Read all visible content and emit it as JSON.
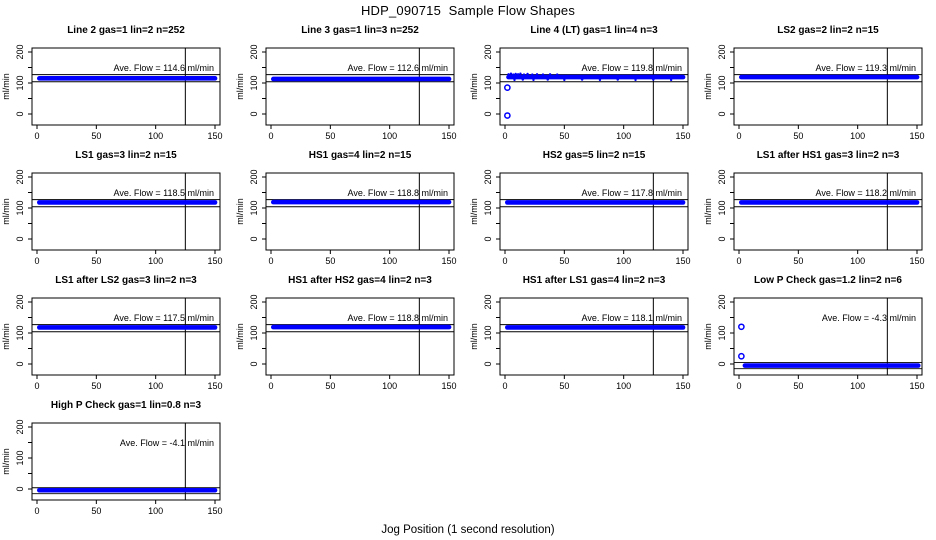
{
  "page": {
    "title": "HDP_090715  Sample Flow Shapes",
    "xlabel": "Jog Position (1 second resolution)"
  },
  "chart_data": {
    "type": "scatter",
    "layout": {
      "rows": 4,
      "cols": 4,
      "n_plots": 13,
      "grid": false,
      "background": "#ffffff"
    },
    "point_color": "#0000ff",
    "axis_color": "#000000",
    "ylabel": "ml/min",
    "xlim": [
      -4,
      154
    ],
    "ylim": [
      -35,
      213
    ],
    "vline_x": 125,
    "x_ticks": [
      {
        "v": 0,
        "label": "0"
      },
      {
        "v": 50,
        "label": "50"
      },
      {
        "v": 100,
        "label": "100"
      },
      {
        "v": 150,
        "label": "150"
      }
    ],
    "y_ticks": [
      {
        "v": 0,
        "label": "0"
      },
      {
        "v": 50,
        "label": ""
      },
      {
        "v": 100,
        "label": "100"
      },
      {
        "v": 150,
        "label": ""
      },
      {
        "v": 200,
        "label": "200"
      }
    ],
    "subplots": [
      {
        "title": "Line 2 gas=1 lin=2 n=252",
        "ave_flow": 114.6,
        "annotation": "Ave. Flow =  114.6  ml/min",
        "band": {
          "x0": 0,
          "x1": 152,
          "y": 115,
          "h": 15
        },
        "limits": [
          104,
          127
        ],
        "outliers": [],
        "noise": []
      },
      {
        "title": "Line 3 gas=1 lin=3 n=252",
        "ave_flow": 112.6,
        "annotation": "Ave. Flow =  112.6  ml/min",
        "band": {
          "x0": 0,
          "x1": 152,
          "y": 113,
          "h": 15
        },
        "limits": [
          104,
          127
        ],
        "outliers": [],
        "noise": []
      },
      {
        "title": "Line 4 (LT) gas=1 lin=4 n=3",
        "ave_flow": 119.8,
        "annotation": "Ave. Flow =  119.8  ml/min",
        "band": {
          "x0": 1,
          "x1": 152,
          "y": 119,
          "h": 14
        },
        "limits": [
          104,
          127
        ],
        "outliers": [
          [
            2,
            -5
          ],
          [
            2,
            85
          ]
        ],
        "noise": [
          [
            3,
            128
          ],
          [
            5,
            130
          ],
          [
            7,
            127
          ],
          [
            9,
            129
          ],
          [
            11,
            128
          ],
          [
            13,
            130
          ],
          [
            16,
            127
          ],
          [
            19,
            129
          ],
          [
            23,
            127
          ],
          [
            27,
            128
          ],
          [
            32,
            127
          ],
          [
            38,
            128
          ],
          [
            44,
            127
          ],
          [
            8,
            110
          ],
          [
            15,
            111
          ],
          [
            24,
            110
          ],
          [
            36,
            111
          ],
          [
            50,
            110
          ],
          [
            65,
            111
          ],
          [
            80,
            110
          ],
          [
            95,
            111
          ],
          [
            110,
            110
          ],
          [
            125,
            111
          ],
          [
            140,
            110
          ]
        ]
      },
      {
        "title": "LS2 gas=2 lin=2 n=15",
        "ave_flow": 119.3,
        "annotation": "Ave. Flow =  119.3  ml/min",
        "band": {
          "x0": 0,
          "x1": 152,
          "y": 119,
          "h": 15
        },
        "limits": [
          104,
          127
        ],
        "outliers": [],
        "noise": []
      },
      {
        "title": "LS1 gas=3 lin=2 n=15",
        "ave_flow": 118.5,
        "annotation": "Ave. Flow =  118.5  ml/min",
        "band": {
          "x0": 0,
          "x1": 152,
          "y": 118,
          "h": 15
        },
        "limits": [
          104,
          127
        ],
        "outliers": [],
        "noise": []
      },
      {
        "title": "HS1 gas=4 lin=2 n=15",
        "ave_flow": 118.8,
        "annotation": "Ave. Flow =  118.8  ml/min",
        "band": {
          "x0": 0,
          "x1": 152,
          "y": 119,
          "h": 15
        },
        "limits": [
          104,
          127
        ],
        "outliers": [],
        "noise": []
      },
      {
        "title": "HS2 gas=5 lin=2 n=15",
        "ave_flow": 117.8,
        "annotation": "Ave. Flow =  117.8  ml/min",
        "band": {
          "x0": 0,
          "x1": 152,
          "y": 118,
          "h": 15
        },
        "limits": [
          104,
          127
        ],
        "outliers": [],
        "noise": []
      },
      {
        "title": "LS1 after HS1 gas=3 lin=2 n=3",
        "ave_flow": 118.2,
        "annotation": "Ave. Flow =  118.2  ml/min",
        "band": {
          "x0": 0,
          "x1": 152,
          "y": 118,
          "h": 15
        },
        "limits": [
          104,
          127
        ],
        "outliers": [],
        "noise": []
      },
      {
        "title": "LS1 after LS2 gas=3 lin=2 n=3",
        "ave_flow": 117.5,
        "annotation": "Ave. Flow =  117.5  ml/min",
        "band": {
          "x0": 0,
          "x1": 152,
          "y": 118,
          "h": 15
        },
        "limits": [
          104,
          127
        ],
        "outliers": [],
        "noise": []
      },
      {
        "title": "HS1 after HS2 gas=4 lin=2 n=3",
        "ave_flow": 118.8,
        "annotation": "Ave. Flow =  118.8  ml/min",
        "band": {
          "x0": 0,
          "x1": 152,
          "y": 119,
          "h": 15
        },
        "limits": [
          104,
          127
        ],
        "outliers": [],
        "noise": []
      },
      {
        "title": "HS1 after LS1 gas=4 lin=2 n=3",
        "ave_flow": 118.1,
        "annotation": "Ave. Flow =  118.1  ml/min",
        "band": {
          "x0": 0,
          "x1": 152,
          "y": 118,
          "h": 15
        },
        "limits": [
          104,
          127
        ],
        "outliers": [],
        "noise": []
      },
      {
        "title": "Low P Check gas=1.2 lin=2 n=6",
        "ave_flow": -4.3,
        "annotation": "Ave. Flow =  -4.3  ml/min",
        "band": {
          "x0": 3,
          "x1": 153,
          "y": -5,
          "h": 15
        },
        "limits": [
          -15,
          5
        ],
        "outliers": [
          [
            2,
            120
          ],
          [
            2,
            25
          ]
        ],
        "noise": []
      },
      {
        "title": "High P Check gas=1 lin=0.8 n=3",
        "ave_flow": -4.1,
        "annotation": "Ave. Flow =  -4.1  ml/min",
        "band": {
          "x0": 0,
          "x1": 152,
          "y": -4,
          "h": 14
        },
        "limits": [
          -15,
          4
        ],
        "outliers": [],
        "noise": []
      }
    ]
  }
}
